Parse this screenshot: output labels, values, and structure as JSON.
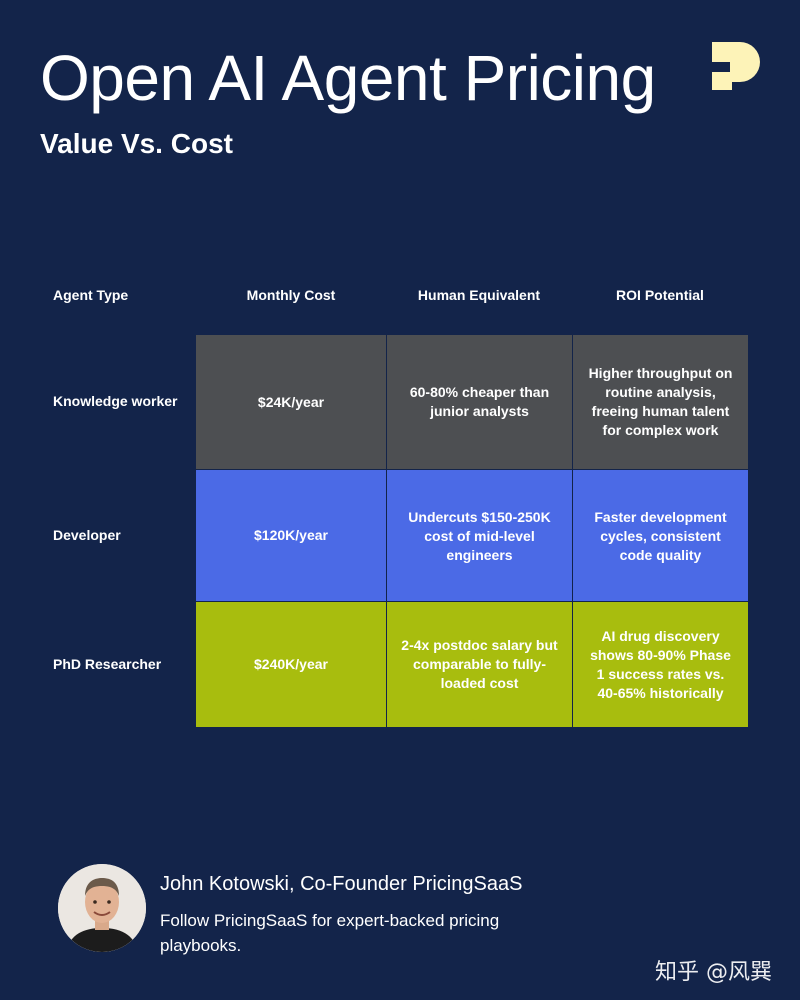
{
  "header": {
    "title": "Open AI Agent Pricing",
    "subtitle": "Value Vs. Cost",
    "logo_icon": "pricingsaas-logo-icon",
    "logo_color": "#fdf3b8"
  },
  "table": {
    "columns": [
      "Agent Type",
      "Monthly Cost",
      "Human Equivalent",
      "ROI Potential"
    ],
    "rows": [
      {
        "label": "Knowledge worker",
        "cost": "$24K/year",
        "human": "60-80% cheaper than junior analysts",
        "roi": "Higher throughput on routine analysis, freeing human talent for complex work",
        "color": "#4d4f52"
      },
      {
        "label": "Developer",
        "cost": "$120K/year",
        "human": "Undercuts $150-250K cost of mid-level engineers",
        "roi": "Faster development cycles, consistent code quality",
        "color": "#4b6ae6"
      },
      {
        "label": "PhD Researcher",
        "cost": "$240K/year",
        "human": "2-4x postdoc salary but comparable to fully-loaded cost",
        "roi": "AI drug discovery shows 80-90% Phase 1 success rates vs. 40-65% historically",
        "color": "#a8bd0e"
      }
    ]
  },
  "footer": {
    "author": "John Kotowski, Co-Founder PricingSaaS",
    "follow": "Follow PricingSaaS for expert-backed pricing playbooks.",
    "avatar_icon": "author-avatar"
  },
  "watermark": "知乎 @风巽",
  "colors": {
    "background": "#13244a",
    "text": "#ffffff"
  }
}
